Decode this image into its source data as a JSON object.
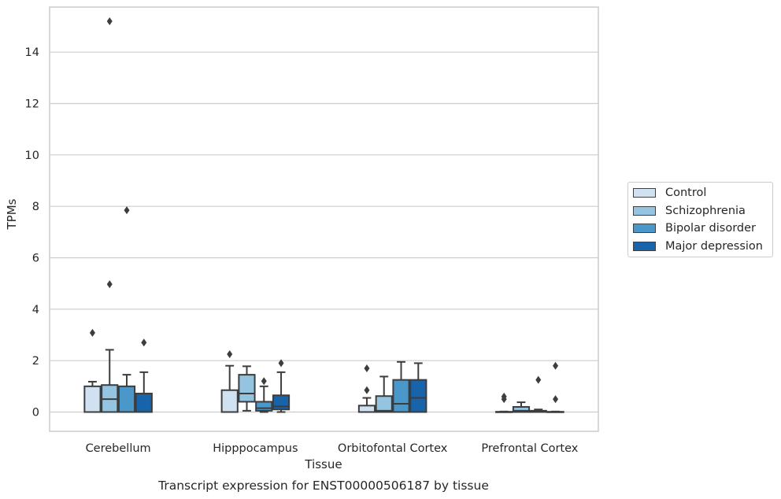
{
  "chart_data": {
    "type": "box",
    "title": "Transcript expression for ENST00000506187 by tissue",
    "xlabel": "Tissue",
    "ylabel": "TPMs",
    "ylim": [
      -0.75,
      15.75
    ],
    "yticks": [
      0,
      2,
      4,
      6,
      8,
      10,
      12,
      14
    ],
    "grid": true,
    "legend_position": "right",
    "categories": [
      "Cerebellum",
      "Hipppocampus",
      "Orbitofontal Cortex",
      "Prefrontal Cortex"
    ],
    "series": [
      {
        "name": "Control",
        "color": "#d0e1f2",
        "boxes": [
          {
            "whislo": 0,
            "q1": 0,
            "med": 0,
            "q3": 1.0,
            "whishi": 1.18,
            "fliers": [
              3.08
            ]
          },
          {
            "whislo": 0,
            "q1": 0,
            "med": 0,
            "q3": 0.85,
            "whishi": 1.8,
            "fliers": [
              2.25
            ]
          },
          {
            "whislo": 0,
            "q1": 0,
            "med": 0,
            "q3": 0.25,
            "whishi": 0.55,
            "fliers": [
              1.7,
              0.85
            ]
          },
          {
            "whislo": 0,
            "q1": 0,
            "med": 0,
            "q3": 0.01,
            "whishi": 0.02,
            "fliers": [
              0.6,
              0.5
            ]
          }
        ]
      },
      {
        "name": "Schizophrenia",
        "color": "#94c4df",
        "boxes": [
          {
            "whislo": 0,
            "q1": 0,
            "med": 0.5,
            "q3": 1.05,
            "whishi": 2.42,
            "fliers": [
              15.2,
              4.97
            ]
          },
          {
            "whislo": 0.05,
            "q1": 0.4,
            "med": 0.72,
            "q3": 1.45,
            "whishi": 1.78,
            "fliers": []
          },
          {
            "whislo": 0,
            "q1": 0,
            "med": 0.05,
            "q3": 0.62,
            "whishi": 1.38,
            "fliers": []
          },
          {
            "whislo": 0,
            "q1": 0,
            "med": 0.05,
            "q3": 0.2,
            "whishi": 0.38,
            "fliers": []
          }
        ]
      },
      {
        "name": "Bipolar disorder",
        "color": "#4a98c9",
        "boxes": [
          {
            "whislo": 0,
            "q1": 0,
            "med": 0,
            "q3": 1.0,
            "whishi": 1.45,
            "fliers": [
              7.85
            ]
          },
          {
            "whislo": 0,
            "q1": 0.05,
            "med": 0.15,
            "q3": 0.4,
            "whishi": 1.0,
            "fliers": [
              1.2
            ]
          },
          {
            "whislo": 0,
            "q1": 0,
            "med": 0.32,
            "q3": 1.25,
            "whishi": 1.95,
            "fliers": []
          },
          {
            "whislo": 0,
            "q1": 0,
            "med": 0,
            "q3": 0.05,
            "whishi": 0.1,
            "fliers": [
              1.25
            ]
          }
        ]
      },
      {
        "name": "Major depression",
        "color": "#1764ab",
        "boxes": [
          {
            "whislo": 0,
            "q1": 0,
            "med": 0,
            "q3": 0.72,
            "whishi": 1.55,
            "fliers": [
              2.7
            ]
          },
          {
            "whislo": 0,
            "q1": 0.1,
            "med": 0.22,
            "q3": 0.65,
            "whishi": 1.55,
            "fliers": [
              1.9
            ]
          },
          {
            "whislo": 0,
            "q1": 0,
            "med": 0.55,
            "q3": 1.25,
            "whishi": 1.9,
            "fliers": []
          },
          {
            "whislo": 0,
            "q1": 0,
            "med": 0,
            "q3": 0.01,
            "whishi": 0.02,
            "fliers": [
              1.8,
              0.5
            ]
          }
        ]
      }
    ]
  }
}
